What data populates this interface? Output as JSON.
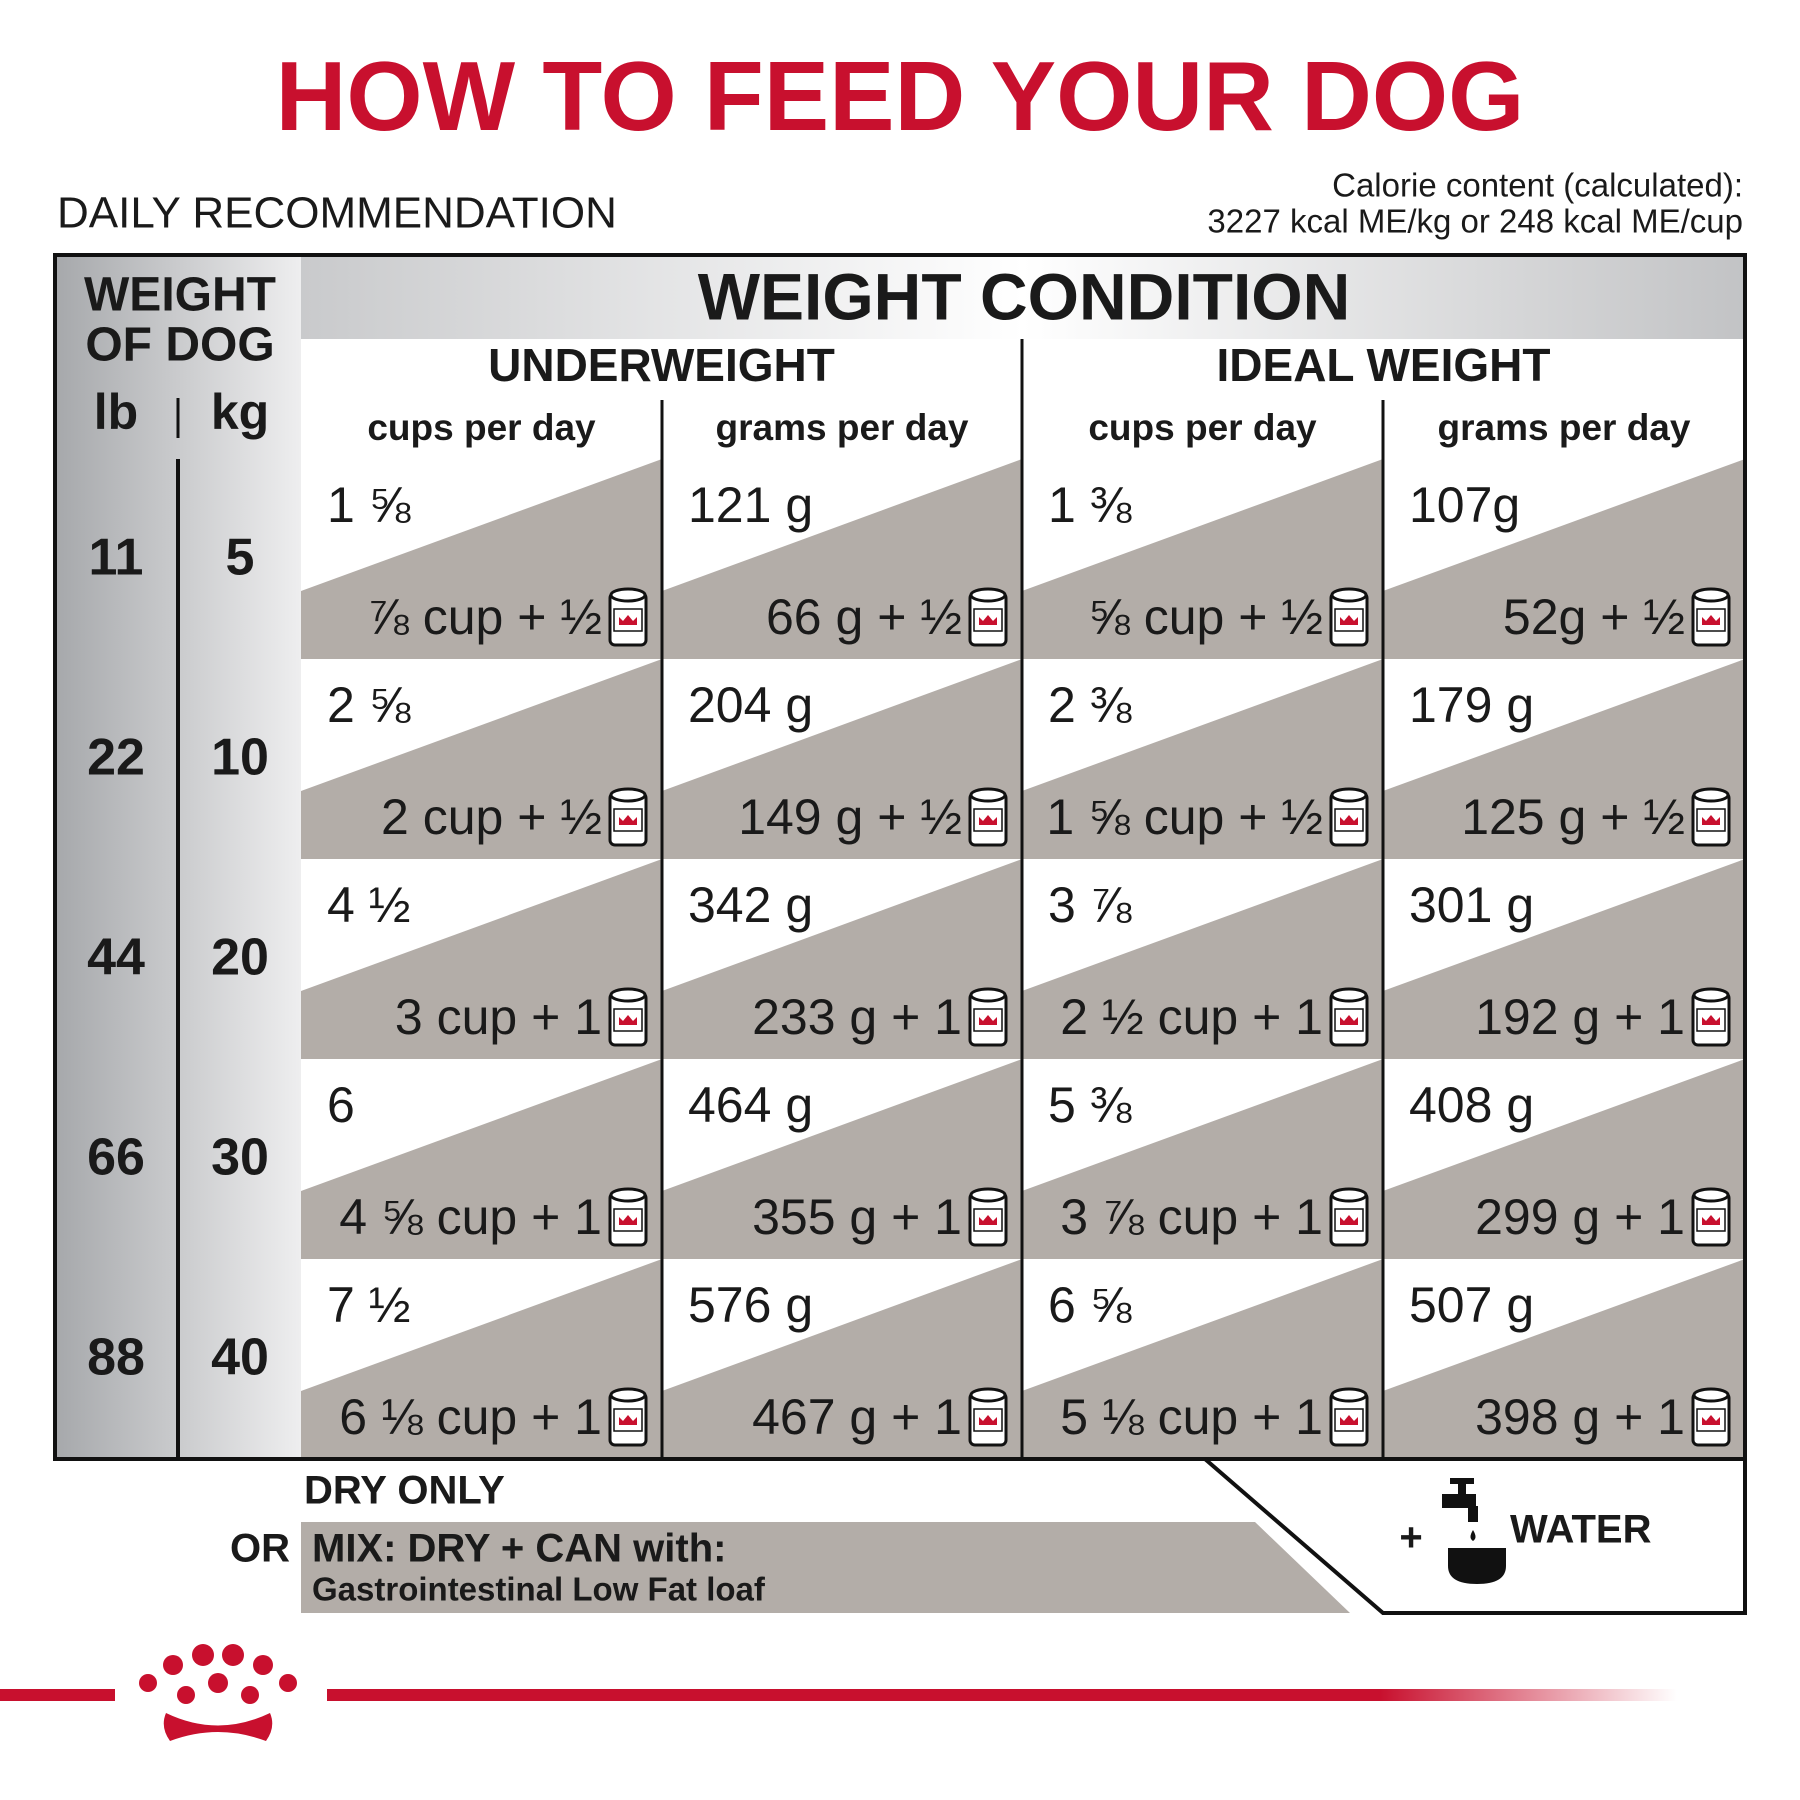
{
  "title": "HOW TO FEED YOUR DOG",
  "subtitle": "DAILY RECOMMENDATION",
  "calorie_content": [
    "Calorie content (calculated):",
    "3227 kcal ME/kg or 248 kcal ME/cup"
  ],
  "table": {
    "weight_header": [
      "WEIGHT",
      "OF DOG"
    ],
    "units": [
      "lb",
      "kg"
    ],
    "condition_header": "WEIGHT CONDITION",
    "groups": [
      {
        "name": "UNDERWEIGHT",
        "columns": [
          "cups per day",
          "grams per day"
        ]
      },
      {
        "name": "IDEAL WEIGHT",
        "columns": [
          "cups per day",
          "grams per day"
        ]
      }
    ],
    "rows": [
      {
        "lb": 11,
        "kg": 5,
        "cells": [
          {
            "dry": "1 ⅝",
            "mix": "⅞ cup + ½"
          },
          {
            "dry": "121 g",
            "mix": "66 g + ½"
          },
          {
            "dry": "1 ⅜",
            "mix": "⅝ cup + ½"
          },
          {
            "dry": "107g",
            "mix": "52g + ½"
          }
        ]
      },
      {
        "lb": 22,
        "kg": 10,
        "cells": [
          {
            "dry": "2 ⅝",
            "mix": "2 cup + ½"
          },
          {
            "dry": "204 g",
            "mix": "149 g + ½"
          },
          {
            "dry": "2 ⅜",
            "mix": "1 ⅝ cup + ½"
          },
          {
            "dry": "179 g",
            "mix": "125 g + ½"
          }
        ]
      },
      {
        "lb": 44,
        "kg": 20,
        "cells": [
          {
            "dry": "4 ½",
            "mix": "3 cup + 1"
          },
          {
            "dry": "342 g",
            "mix": "233 g + 1"
          },
          {
            "dry": "3 ⅞",
            "mix": "2 ½ cup + 1"
          },
          {
            "dry": "301 g",
            "mix": "192 g + 1"
          }
        ]
      },
      {
        "lb": 66,
        "kg": 30,
        "cells": [
          {
            "dry": "6",
            "mix": "4 ⅝ cup + 1"
          },
          {
            "dry": "464 g",
            "mix": "355 g + 1"
          },
          {
            "dry": "5 ⅜",
            "mix": "3 ⅞ cup + 1"
          },
          {
            "dry": "408 g",
            "mix": "299 g + 1"
          }
        ]
      },
      {
        "lb": 88,
        "kg": 40,
        "cells": [
          {
            "dry": "7 ½",
            "mix": "6 ⅛ cup + 1"
          },
          {
            "dry": "576 g",
            "mix": "467 g + 1"
          },
          {
            "dry": "6 ⅝",
            "mix": "5 ⅛ cup + 1"
          },
          {
            "dry": "507 g",
            "mix": "398 g + 1"
          }
        ]
      }
    ]
  },
  "footer": {
    "dry_only": "DRY ONLY",
    "or": "OR",
    "mix": "MIX: DRY + CAN with:",
    "mix_product": "Gastrointestinal Low Fat loaf",
    "plus": "+",
    "water": "WATER"
  }
}
